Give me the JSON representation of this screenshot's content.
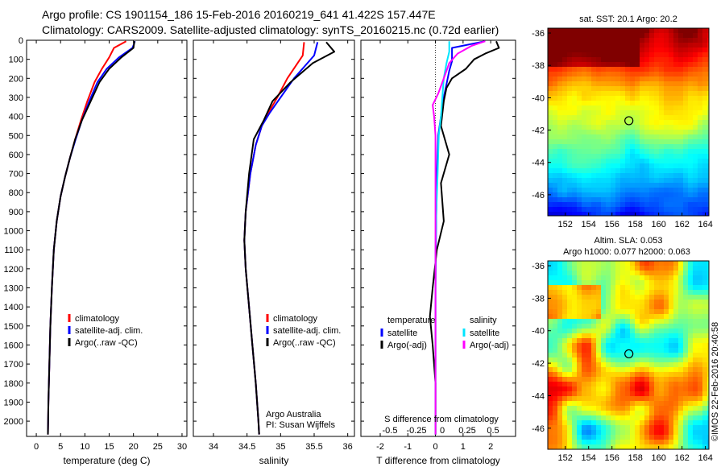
{
  "header": {
    "line1": "Argo profile: CS 1901154_186 15-Feb-2016 20160219_641 41.422S 157.447E",
    "line2": "Climatology: CARS2009. Satellite-adjusted climatology: synTS_20160215.nc (0.72d earlier)"
  },
  "colors": {
    "climatology": "#ff0000",
    "satellite": "#0000ff",
    "argo": "#000000",
    "sat_s": "#00e5ff",
    "argo_s": "#ff00ff"
  },
  "chart_data": [
    {
      "type": "line",
      "xlabel": "temperature (deg C)",
      "xlim": [
        -2,
        31
      ],
      "ylim": [
        2080,
        0
      ],
      "xticks": [
        0,
        5,
        10,
        15,
        20,
        25,
        30
      ],
      "yticks": [
        0,
        100,
        200,
        300,
        400,
        500,
        600,
        700,
        800,
        900,
        1000,
        1100,
        1200,
        1300,
        1400,
        1500,
        1600,
        1700,
        1800,
        1900,
        2000
      ],
      "legend": [
        "climatology",
        "satellite-adj. clim.",
        "Argo(..raw -QC)"
      ],
      "series": [
        {
          "name": "climatology",
          "color": "#ff0000",
          "points": [
            [
              18.5,
              5
            ],
            [
              16,
              40
            ],
            [
              15,
              90
            ],
            [
              13.5,
              150
            ],
            [
              12,
              220
            ],
            [
              10.5,
              320
            ],
            [
              9.2,
              420
            ],
            [
              8,
              520
            ],
            [
              6.9,
              620
            ],
            [
              5.9,
              720
            ],
            [
              5,
              820
            ],
            [
              4.2,
              950
            ],
            [
              3.6,
              1100
            ],
            [
              3.2,
              1300
            ],
            [
              2.9,
              1500
            ],
            [
              2.7,
              1700
            ],
            [
              2.5,
              1900
            ],
            [
              2.4,
              2070
            ]
          ]
        },
        {
          "name": "satellite-adj. clim.",
          "color": "#0000ff",
          "points": [
            [
              20.3,
              5
            ],
            [
              19.8,
              40
            ],
            [
              17,
              90
            ],
            [
              14.5,
              150
            ],
            [
              12.6,
              220
            ],
            [
              10.9,
              320
            ],
            [
              9.4,
              420
            ],
            [
              8.1,
              520
            ],
            [
              6.9,
              620
            ],
            [
              5.9,
              720
            ],
            [
              5,
              820
            ],
            [
              4.2,
              950
            ],
            [
              3.6,
              1100
            ],
            [
              3.2,
              1300
            ],
            [
              2.9,
              1500
            ],
            [
              2.7,
              1700
            ],
            [
              2.5,
              1900
            ],
            [
              2.4,
              2070
            ]
          ]
        },
        {
          "name": "Argo(..raw -QC)",
          "color": "#000000",
          "points": [
            [
              20.2,
              5
            ],
            [
              20,
              40
            ],
            [
              17.5,
              90
            ],
            [
              15,
              150
            ],
            [
              13,
              220
            ],
            [
              11.2,
              320
            ],
            [
              9.4,
              420
            ],
            [
              8,
              520
            ],
            [
              6.9,
              620
            ],
            [
              5.9,
              720
            ],
            [
              5,
              820
            ],
            [
              4.2,
              950
            ],
            [
              3.6,
              1100
            ],
            [
              3.2,
              1300
            ],
            [
              2.9,
              1500
            ],
            [
              2.7,
              1700
            ],
            [
              2.5,
              1900
            ],
            [
              2.4,
              2070
            ]
          ]
        }
      ]
    },
    {
      "type": "line",
      "xlabel": "salinity",
      "xlim": [
        33.7,
        36.1
      ],
      "ylim": [
        2080,
        0
      ],
      "xticks": [
        34,
        34.5,
        35,
        35.5,
        36
      ],
      "legend": [
        "climatology",
        "satellite-adj. clim.",
        "Argo(..raw -QC)"
      ],
      "credit1": "Argo Australia",
      "credit2": "PI: Susan Wijffels",
      "series": [
        {
          "name": "climatology",
          "color": "#ff0000",
          "points": [
            [
              35.35,
              10
            ],
            [
              35.33,
              80
            ],
            [
              35.1,
              200
            ],
            [
              34.95,
              300
            ],
            [
              34.82,
              380
            ],
            [
              34.72,
              450
            ],
            [
              34.63,
              550
            ],
            [
              34.55,
              700
            ],
            [
              34.48,
              900
            ],
            [
              34.46,
              1050
            ],
            [
              34.48,
              1200
            ],
            [
              34.53,
              1400
            ],
            [
              34.58,
              1600
            ],
            [
              34.63,
              1800
            ],
            [
              34.67,
              2000
            ],
            [
              34.68,
              2070
            ]
          ]
        },
        {
          "name": "satellite-adj. clim.",
          "color": "#0000ff",
          "points": [
            [
              35.55,
              10
            ],
            [
              35.5,
              80
            ],
            [
              35.2,
              200
            ],
            [
              35.0,
              300
            ],
            [
              34.84,
              380
            ],
            [
              34.72,
              450
            ],
            [
              34.63,
              550
            ],
            [
              34.55,
              700
            ],
            [
              34.48,
              900
            ],
            [
              34.46,
              1050
            ],
            [
              34.48,
              1200
            ],
            [
              34.53,
              1400
            ],
            [
              34.58,
              1600
            ],
            [
              34.63,
              1800
            ],
            [
              34.67,
              2000
            ],
            [
              34.68,
              2070
            ]
          ]
        },
        {
          "name": "Argo(..raw -QC)",
          "color": "#000000",
          "points": [
            [
              35.68,
              10
            ],
            [
              35.8,
              60
            ],
            [
              35.48,
              120
            ],
            [
              35.15,
              220
            ],
            [
              34.88,
              320
            ],
            [
              34.75,
              420
            ],
            [
              34.6,
              520
            ],
            [
              34.53,
              700
            ],
            [
              34.48,
              900
            ],
            [
              34.46,
              1050
            ],
            [
              34.48,
              1200
            ],
            [
              34.53,
              1400
            ],
            [
              34.58,
              1600
            ],
            [
              34.63,
              1800
            ],
            [
              34.67,
              2000
            ],
            [
              34.68,
              2070
            ]
          ]
        }
      ]
    },
    {
      "type": "line",
      "xlabel": "T difference from climatology",
      "xlabel_top": "S difference from climatology",
      "xlim": [
        -2.7,
        2.9
      ],
      "ylim": [
        2080,
        0
      ],
      "xticks": [
        -2,
        -1,
        0,
        1,
        2
      ],
      "xticks_top": [
        "-0.5",
        "-0.25",
        "0",
        "0.25",
        "0.5"
      ],
      "legend_t_title": "temperature",
      "legend_s_title": "salinity",
      "legend": [
        "satellite",
        "Argo(-adj)",
        "satellite",
        "Argo(-adj)"
      ],
      "series": [
        {
          "name": "satellite",
          "color": "#0000ff",
          "points": [
            [
              1.8,
              5
            ],
            [
              0.6,
              40
            ],
            [
              0.6,
              80
            ],
            [
              0.6,
              110
            ],
            [
              0.5,
              160
            ],
            [
              0.4,
              230
            ],
            [
              0.3,
              300
            ],
            [
              0.2,
              400
            ],
            [
              0.1,
              500
            ],
            [
              0.05,
              700
            ],
            [
              0.02,
              1000
            ],
            [
              0,
              1300
            ],
            [
              0,
              1600
            ],
            [
              0,
              2070
            ]
          ]
        },
        {
          "name": "Argo(-adj)",
          "color": "#000000",
          "points": [
            [
              2.2,
              5
            ],
            [
              2.3,
              40
            ],
            [
              1.8,
              70
            ],
            [
              1.4,
              100
            ],
            [
              1.1,
              150
            ],
            [
              0.6,
              200
            ],
            [
              0.4,
              250
            ],
            [
              0.3,
              320
            ],
            [
              0.2,
              450
            ],
            [
              0.5,
              600
            ],
            [
              0.2,
              750
            ],
            [
              0.3,
              950
            ],
            [
              0.05,
              1100
            ],
            [
              -0.1,
              1300
            ],
            [
              -0.2,
              1450
            ],
            [
              -0.1,
              1600
            ],
            [
              0,
              1800
            ],
            [
              0,
              2070
            ]
          ]
        },
        {
          "name": "satellite",
          "color": "#00e5ff",
          "points": [
            [
              0.5,
              5
            ],
            [
              0.5,
              60
            ],
            [
              0.4,
              120
            ],
            [
              0.3,
              200
            ],
            [
              0.25,
              300
            ],
            [
              0.2,
              400
            ],
            [
              0.12,
              500
            ],
            [
              0.08,
              700
            ],
            [
              0.03,
              900
            ],
            [
              0,
              1100
            ],
            [
              0,
              1400
            ],
            [
              0,
              1700
            ],
            [
              0,
              2070
            ]
          ]
        },
        {
          "name": "Argo(-adj)",
          "color": "#ff00ff",
          "points": [
            [
              1.8,
              5
            ],
            [
              1.3,
              30
            ],
            [
              0.8,
              70
            ],
            [
              0.5,
              120
            ],
            [
              0.3,
              200
            ],
            [
              0.1,
              280
            ],
            [
              -0.1,
              340
            ],
            [
              -0.05,
              400
            ],
            [
              0,
              500
            ],
            [
              0,
              2070
            ]
          ]
        }
      ]
    },
    {
      "type": "heatmap",
      "title": "sat. SST: 20.1 Argo: 20.2",
      "xlim": [
        150.5,
        164.3
      ],
      "ylim": [
        -47.3,
        -35.7
      ],
      "xticks": [
        152,
        154,
        156,
        158,
        160,
        162,
        164
      ],
      "yticks": [
        -36,
        -38,
        -40,
        -42,
        -44,
        -46
      ],
      "marker": [
        157.447,
        -41.422
      ]
    },
    {
      "type": "heatmap",
      "title1": "Altim. SLA: 0.053",
      "title2": "Argo h1000: 0.077 h2000: 0.063",
      "xlim": [
        150.5,
        164.3
      ],
      "ylim": [
        -47.3,
        -35.7
      ],
      "xticks": [
        152,
        154,
        156,
        158,
        160,
        162,
        164
      ],
      "yticks": [
        -36,
        -38,
        -40,
        -42,
        -44,
        -46
      ],
      "marker": [
        157.447,
        -41.422
      ]
    }
  ],
  "side_label": "©IMOS 22-Feb-2016 20:40:58"
}
